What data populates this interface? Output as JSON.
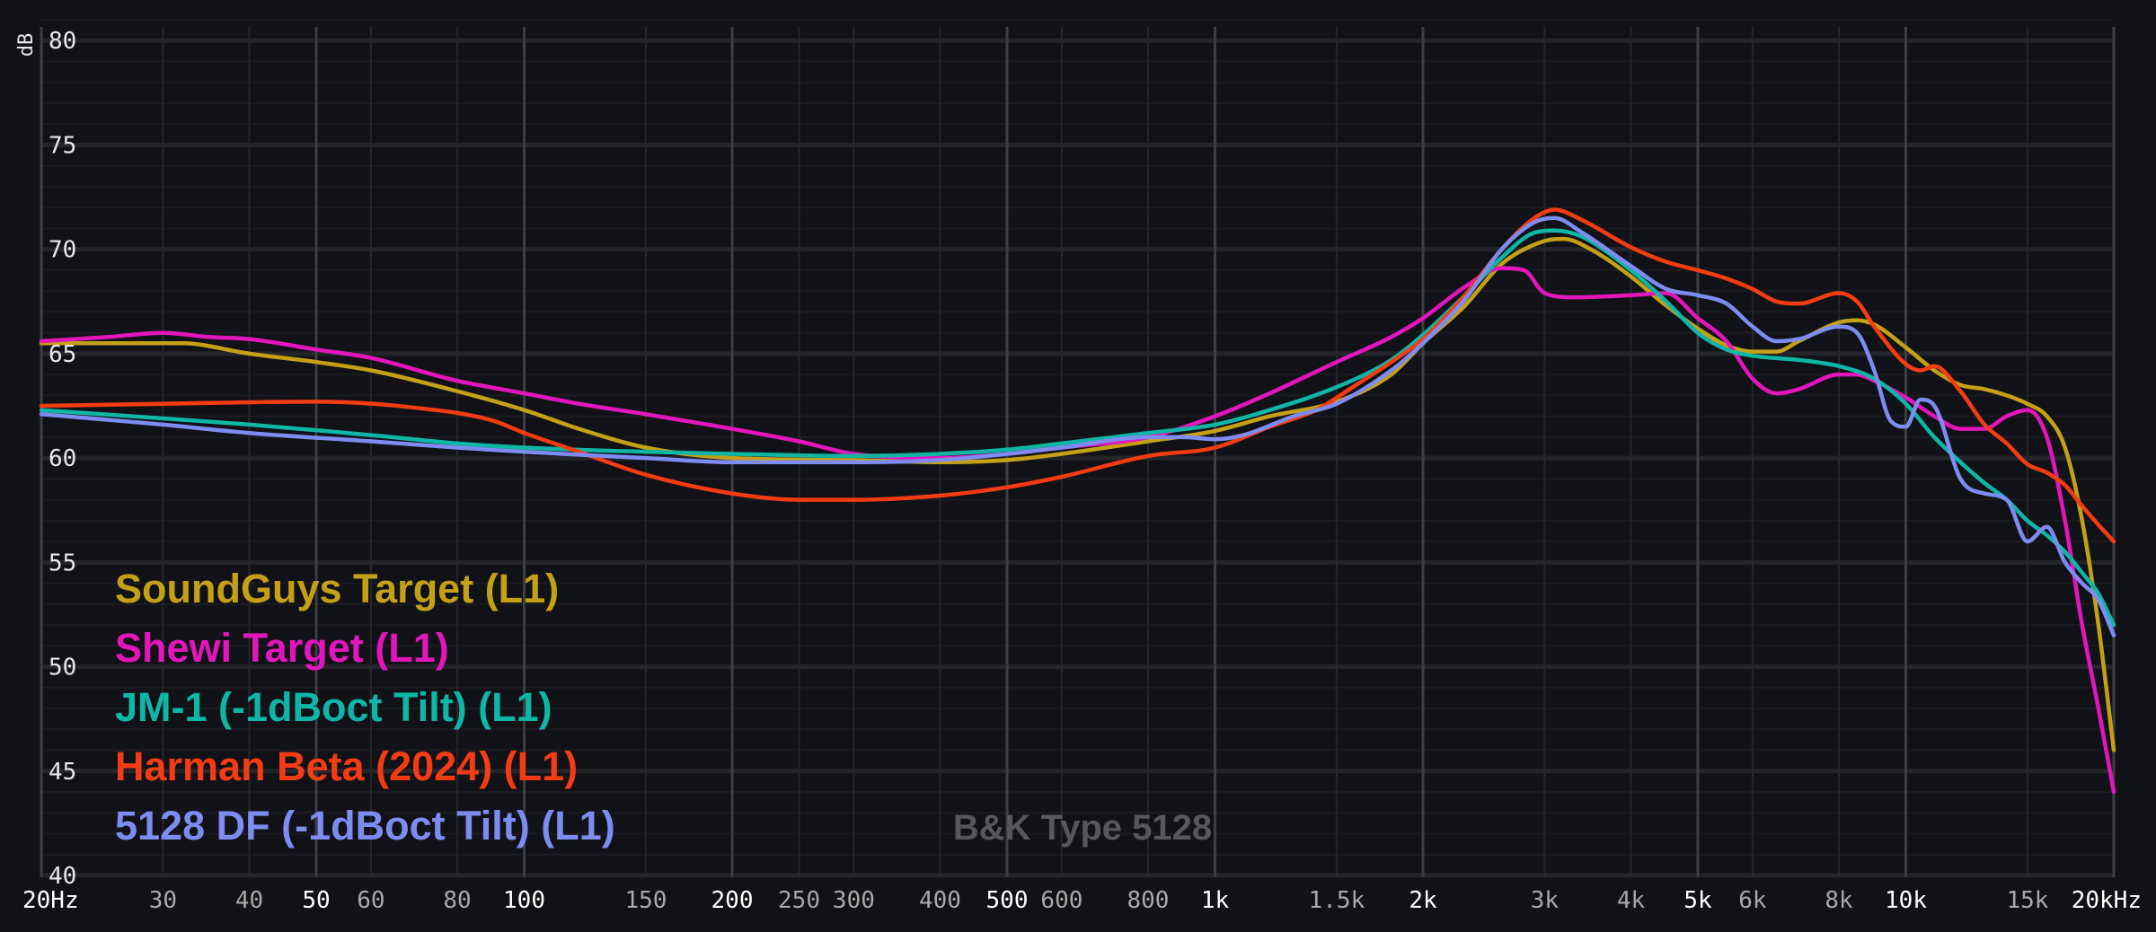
{
  "chart_data": {
    "type": "line",
    "x_scale": "log",
    "xlim": [
      20,
      20000
    ],
    "ylim": [
      40,
      81
    ],
    "ylabel": "dB",
    "y_ticks": [
      {
        "value": 40,
        "label": "40"
      },
      {
        "value": 45,
        "label": "45"
      },
      {
        "value": 50,
        "label": "50"
      },
      {
        "value": 55,
        "label": "55"
      },
      {
        "value": 60,
        "label": "60"
      },
      {
        "value": 65,
        "label": "65"
      },
      {
        "value": 70,
        "label": "70"
      },
      {
        "value": 75,
        "label": "75"
      },
      {
        "value": 80,
        "label": "80"
      }
    ],
    "x_ticks": [
      {
        "value": 20,
        "label": "20Hz",
        "major": true
      },
      {
        "value": 30,
        "label": "30",
        "major": false
      },
      {
        "value": 40,
        "label": "40",
        "major": false
      },
      {
        "value": 50,
        "label": "50",
        "major": true
      },
      {
        "value": 60,
        "label": "60",
        "major": false
      },
      {
        "value": 80,
        "label": "80",
        "major": false
      },
      {
        "value": 100,
        "label": "100",
        "major": true
      },
      {
        "value": 150,
        "label": "150",
        "major": false
      },
      {
        "value": 200,
        "label": "200",
        "major": true
      },
      {
        "value": 250,
        "label": "250",
        "major": false
      },
      {
        "value": 300,
        "label": "300",
        "major": false
      },
      {
        "value": 400,
        "label": "400",
        "major": false
      },
      {
        "value": 500,
        "label": "500",
        "major": true
      },
      {
        "value": 600,
        "label": "600",
        "major": false
      },
      {
        "value": 800,
        "label": "800",
        "major": false
      },
      {
        "value": 1000,
        "label": "1k",
        "major": true
      },
      {
        "value": 1500,
        "label": "1.5k",
        "major": false
      },
      {
        "value": 2000,
        "label": "2k",
        "major": true
      },
      {
        "value": 3000,
        "label": "3k",
        "major": false
      },
      {
        "value": 4000,
        "label": "4k",
        "major": false
      },
      {
        "value": 5000,
        "label": "5k",
        "major": true
      },
      {
        "value": 6000,
        "label": "6k",
        "major": false
      },
      {
        "value": 8000,
        "label": "8k",
        "major": false
      },
      {
        "value": 10000,
        "label": "10k",
        "major": true
      },
      {
        "value": 15000,
        "label": "15k",
        "major": false
      },
      {
        "value": 20000,
        "label": "20kHz",
        "major": true
      }
    ],
    "annotation": "B&K Type 5128",
    "series": [
      {
        "name": "SoundGuys Target (L1)",
        "color": "#c4a017",
        "points": [
          [
            20,
            65.5
          ],
          [
            25,
            65.5
          ],
          [
            32,
            65.5
          ],
          [
            40,
            65
          ],
          [
            50,
            64.6
          ],
          [
            60,
            64.2
          ],
          [
            80,
            63.2
          ],
          [
            100,
            62.3
          ],
          [
            120,
            61.4
          ],
          [
            150,
            60.5
          ],
          [
            200,
            60.0
          ],
          [
            300,
            59.9
          ],
          [
            400,
            59.8
          ],
          [
            500,
            59.9
          ],
          [
            600,
            60.2
          ],
          [
            800,
            60.8
          ],
          [
            1000,
            61.3
          ],
          [
            1200,
            62.0
          ],
          [
            1500,
            62.7
          ],
          [
            1800,
            64.0
          ],
          [
            2000,
            65.5
          ],
          [
            2300,
            67.3
          ],
          [
            2600,
            69.3
          ],
          [
            3000,
            70.4
          ],
          [
            3200,
            70.5
          ],
          [
            3500,
            70.0
          ],
          [
            4000,
            68.7
          ],
          [
            4500,
            67.3
          ],
          [
            5000,
            66.2
          ],
          [
            5500,
            65.4
          ],
          [
            6000,
            65.1
          ],
          [
            6500,
            65.1
          ],
          [
            7000,
            65.6
          ],
          [
            8000,
            66.5
          ],
          [
            8500,
            66.6
          ],
          [
            9000,
            66.4
          ],
          [
            10000,
            65.3
          ],
          [
            11000,
            64.2
          ],
          [
            12000,
            63.5
          ],
          [
            13000,
            63.3
          ],
          [
            14000,
            63.0
          ],
          [
            15000,
            62.6
          ],
          [
            16000,
            62.0
          ],
          [
            17000,
            60.5
          ],
          [
            18000,
            57
          ],
          [
            19000,
            52
          ],
          [
            20000,
            46
          ]
        ]
      },
      {
        "name": "Shewi Target (L1)",
        "color": "#e316bc",
        "points": [
          [
            20,
            65.6
          ],
          [
            25,
            65.8
          ],
          [
            30,
            66.0
          ],
          [
            35,
            65.8
          ],
          [
            40,
            65.7
          ],
          [
            50,
            65.2
          ],
          [
            60,
            64.8
          ],
          [
            80,
            63.7
          ],
          [
            100,
            63.1
          ],
          [
            120,
            62.6
          ],
          [
            150,
            62.1
          ],
          [
            200,
            61.4
          ],
          [
            250,
            60.8
          ],
          [
            300,
            60.2
          ],
          [
            400,
            60.0
          ],
          [
            500,
            60.2
          ],
          [
            600,
            60.5
          ],
          [
            800,
            61.0
          ],
          [
            1000,
            62.0
          ],
          [
            1200,
            63.1
          ],
          [
            1500,
            64.6
          ],
          [
            1800,
            65.8
          ],
          [
            2000,
            66.7
          ],
          [
            2300,
            68.2
          ],
          [
            2600,
            69.1
          ],
          [
            2800,
            69.0
          ],
          [
            3000,
            67.9
          ],
          [
            3300,
            67.7
          ],
          [
            4000,
            67.8
          ],
          [
            4500,
            67.9
          ],
          [
            5000,
            66.7
          ],
          [
            5500,
            65.6
          ],
          [
            6000,
            63.8
          ],
          [
            6500,
            63.1
          ],
          [
            7000,
            63.3
          ],
          [
            8000,
            64.0
          ],
          [
            8500,
            64.0
          ],
          [
            9000,
            63.7
          ],
          [
            10000,
            62.9
          ],
          [
            11000,
            62.0
          ],
          [
            12000,
            61.4
          ],
          [
            13000,
            61.4
          ],
          [
            14000,
            62.0
          ],
          [
            15000,
            62.3
          ],
          [
            16000,
            61.0
          ],
          [
            17000,
            57
          ],
          [
            18000,
            52
          ],
          [
            19000,
            48
          ],
          [
            20000,
            44
          ]
        ]
      },
      {
        "name": "JM-1 (-1dBoct Tilt) (L1)",
        "color": "#0fb6a6",
        "points": [
          [
            20,
            62.3
          ],
          [
            30,
            61.9
          ],
          [
            40,
            61.6
          ],
          [
            60,
            61.1
          ],
          [
            80,
            60.7
          ],
          [
            100,
            60.5
          ],
          [
            150,
            60.3
          ],
          [
            200,
            60.2
          ],
          [
            300,
            60.1
          ],
          [
            400,
            60.2
          ],
          [
            500,
            60.4
          ],
          [
            600,
            60.7
          ],
          [
            800,
            61.2
          ],
          [
            1000,
            61.6
          ],
          [
            1200,
            62.3
          ],
          [
            1500,
            63.4
          ],
          [
            1800,
            64.7
          ],
          [
            2000,
            65.9
          ],
          [
            2300,
            67.8
          ],
          [
            2600,
            69.6
          ],
          [
            2900,
            70.8
          ],
          [
            3100,
            70.9
          ],
          [
            3400,
            70.6
          ],
          [
            4000,
            69.0
          ],
          [
            4500,
            67.5
          ],
          [
            5000,
            66.0
          ],
          [
            5500,
            65.2
          ],
          [
            6000,
            64.9
          ],
          [
            7000,
            64.7
          ],
          [
            8000,
            64.4
          ],
          [
            9000,
            63.8
          ],
          [
            10000,
            62.6
          ],
          [
            11000,
            61.0
          ],
          [
            12000,
            59.8
          ],
          [
            13000,
            58.8
          ],
          [
            14000,
            58.0
          ],
          [
            15000,
            57.0
          ],
          [
            16000,
            56.3
          ],
          [
            17000,
            55.5
          ],
          [
            18000,
            54.5
          ],
          [
            19000,
            53.5
          ],
          [
            20000,
            52.0
          ]
        ]
      },
      {
        "name": "Harman Beta (2024) (L1)",
        "color": "#f43c14",
        "points": [
          [
            20,
            62.5
          ],
          [
            30,
            62.6
          ],
          [
            50,
            62.7
          ],
          [
            70,
            62.4
          ],
          [
            90,
            61.8
          ],
          [
            100,
            61.2
          ],
          [
            120,
            60.3
          ],
          [
            150,
            59.2
          ],
          [
            200,
            58.3
          ],
          [
            250,
            58.0
          ],
          [
            300,
            58.0
          ],
          [
            400,
            58.2
          ],
          [
            500,
            58.6
          ],
          [
            600,
            59.1
          ],
          [
            800,
            60.1
          ],
          [
            1000,
            60.5
          ],
          [
            1200,
            61.5
          ],
          [
            1400,
            62.3
          ],
          [
            1600,
            63.5
          ],
          [
            1800,
            64.6
          ],
          [
            2000,
            65.7
          ],
          [
            2300,
            67.8
          ],
          [
            2600,
            70.0
          ],
          [
            2900,
            71.5
          ],
          [
            3100,
            71.9
          ],
          [
            3400,
            71.4
          ],
          [
            4000,
            70.1
          ],
          [
            4500,
            69.4
          ],
          [
            5000,
            69.0
          ],
          [
            5500,
            68.6
          ],
          [
            6000,
            68.1
          ],
          [
            6500,
            67.5
          ],
          [
            7000,
            67.4
          ],
          [
            8000,
            67.9
          ],
          [
            8500,
            67.5
          ],
          [
            9000,
            66.3
          ],
          [
            10000,
            64.5
          ],
          [
            10500,
            64.2
          ],
          [
            11000,
            64.4
          ],
          [
            12000,
            63.2
          ],
          [
            13000,
            61.6
          ],
          [
            14000,
            60.7
          ],
          [
            15000,
            59.7
          ],
          [
            16000,
            59.3
          ],
          [
            17000,
            58.7
          ],
          [
            18000,
            57.7
          ],
          [
            19000,
            56.8
          ],
          [
            20000,
            56.0
          ]
        ]
      },
      {
        "name": "5128 DF (-1dBoct Tilt) (L1)",
        "color": "#7d8cf0",
        "points": [
          [
            20,
            62.1
          ],
          [
            30,
            61.6
          ],
          [
            40,
            61.2
          ],
          [
            60,
            60.8
          ],
          [
            80,
            60.5
          ],
          [
            100,
            60.3
          ],
          [
            150,
            60.0
          ],
          [
            200,
            59.8
          ],
          [
            300,
            59.8
          ],
          [
            400,
            59.9
          ],
          [
            500,
            60.2
          ],
          [
            600,
            60.5
          ],
          [
            800,
            61.0
          ],
          [
            900,
            61.0
          ],
          [
            1000,
            60.9
          ],
          [
            1100,
            61.1
          ],
          [
            1300,
            62.0
          ],
          [
            1500,
            62.6
          ],
          [
            1800,
            64.2
          ],
          [
            2000,
            65.5
          ],
          [
            2300,
            67.6
          ],
          [
            2600,
            70.0
          ],
          [
            2900,
            71.3
          ],
          [
            3100,
            71.5
          ],
          [
            3400,
            70.8
          ],
          [
            4000,
            69.2
          ],
          [
            4500,
            68.1
          ],
          [
            5000,
            67.8
          ],
          [
            5500,
            67.4
          ],
          [
            6000,
            66.3
          ],
          [
            6500,
            65.6
          ],
          [
            7000,
            65.7
          ],
          [
            8000,
            66.3
          ],
          [
            8500,
            66.0
          ],
          [
            9000,
            64.2
          ],
          [
            9500,
            61.8
          ],
          [
            10000,
            61.5
          ],
          [
            10500,
            62.8
          ],
          [
            11000,
            62.5
          ],
          [
            12000,
            59.0
          ],
          [
            13000,
            58.3
          ],
          [
            14000,
            58.0
          ],
          [
            15000,
            56.0
          ],
          [
            16000,
            56.7
          ],
          [
            17000,
            55.0
          ],
          [
            18000,
            54.0
          ],
          [
            19000,
            53.2
          ],
          [
            20000,
            51.5
          ]
        ]
      }
    ]
  }
}
